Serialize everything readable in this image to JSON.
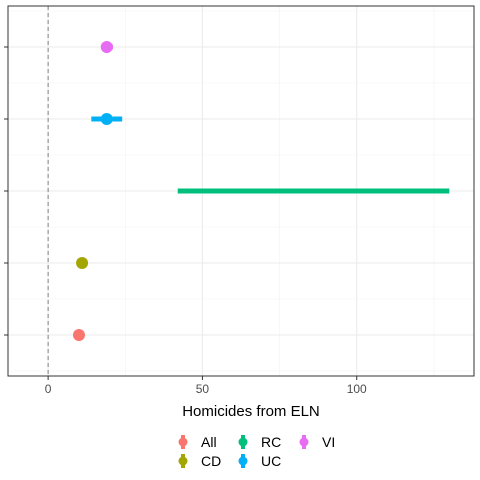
{
  "chart_data": {
    "type": "scatter",
    "xlabel": "Homicides from ELN",
    "ylabel": "",
    "xlim": [
      -13,
      138
    ],
    "x_ticks": [
      0,
      50,
      100
    ],
    "x_tick_labels": [
      "0",
      "50",
      "100"
    ],
    "reference_line_x": 0,
    "grid": true,
    "legend_position": "bottom",
    "series": [
      {
        "name": "All",
        "color": "#F8766D",
        "estimate": 10,
        "low": 10,
        "high": 10
      },
      {
        "name": "CD",
        "color": "#A3A500",
        "estimate": 11,
        "low": 11,
        "high": 11
      },
      {
        "name": "RC",
        "color": "#00BF7D",
        "estimate": null,
        "low": 42,
        "high": 130
      },
      {
        "name": "UC",
        "color": "#00B0F6",
        "estimate": 19,
        "low": 14,
        "high": 24
      },
      {
        "name": "VI",
        "color": "#E76BF3",
        "estimate": 19,
        "low": 18,
        "high": 21
      }
    ],
    "plot_order_bottom_to_top": [
      "All",
      "CD",
      "RC",
      "UC",
      "VI"
    ],
    "legend_layout": [
      [
        "All",
        "RC",
        "VI"
      ],
      [
        "CD",
        "UC"
      ]
    ]
  }
}
